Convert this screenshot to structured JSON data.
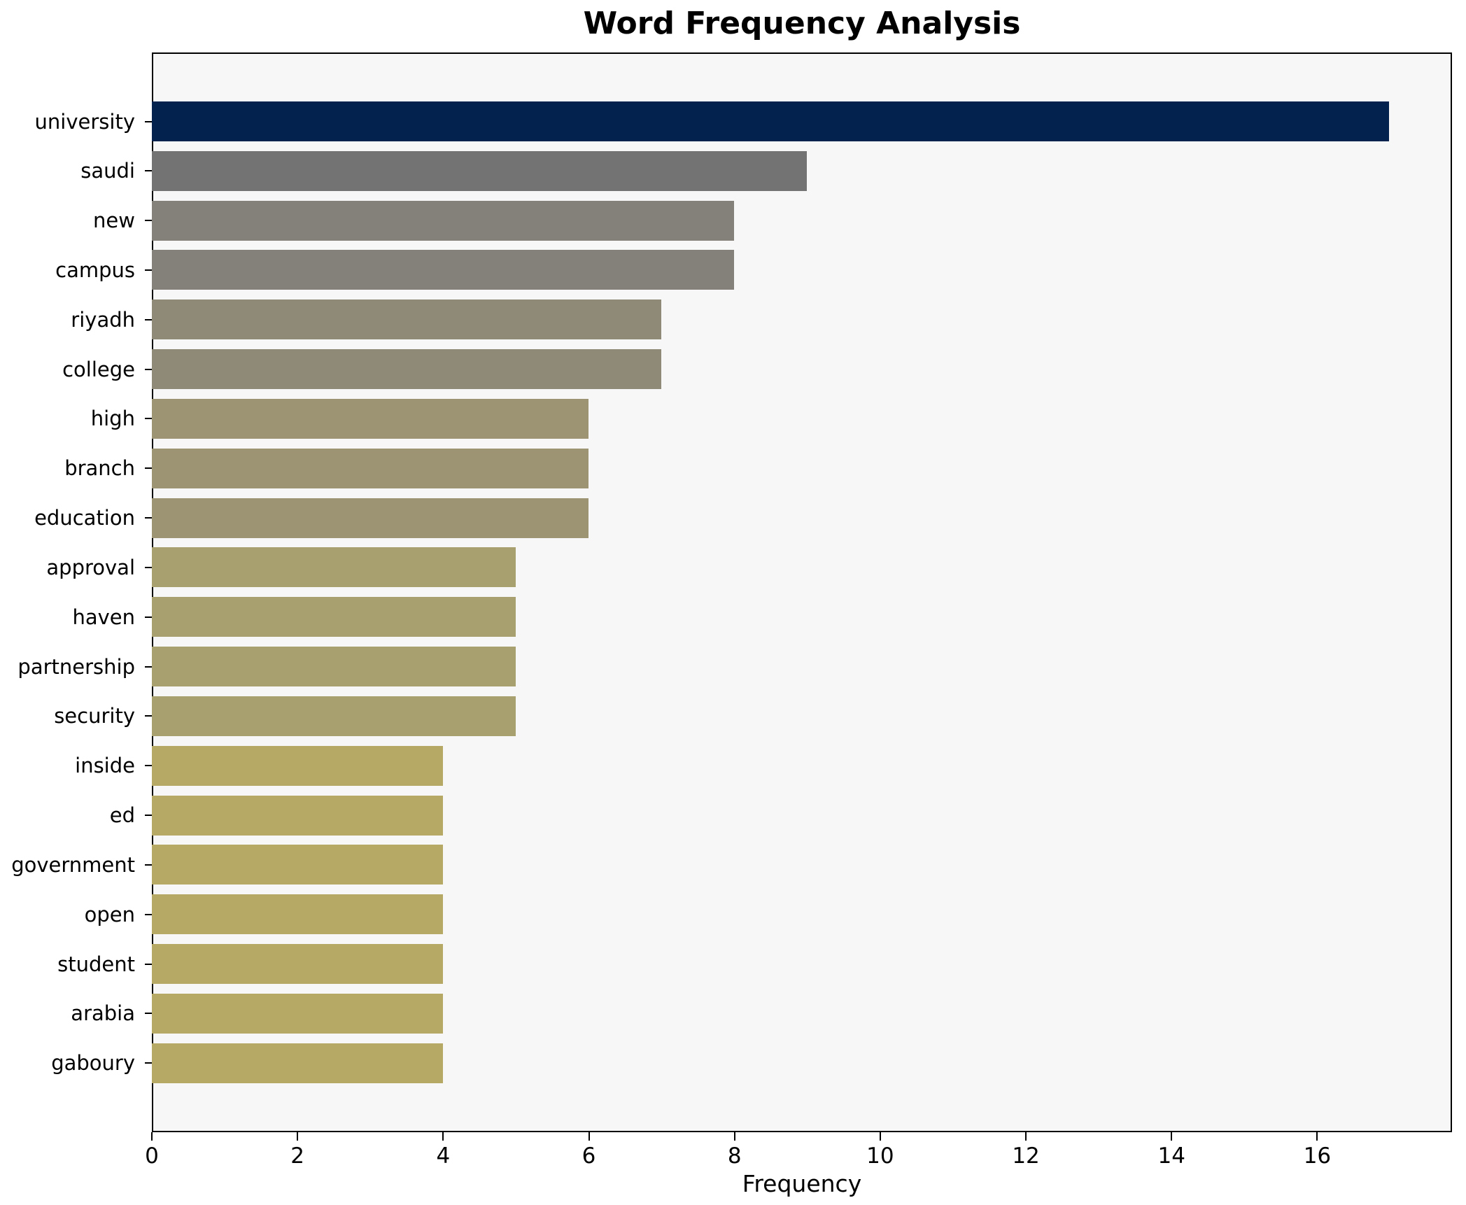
{
  "chart_data": {
    "type": "bar",
    "orientation": "horizontal",
    "title": "Word Frequency Analysis",
    "xlabel": "Frequency",
    "ylabel": "",
    "categories": [
      "university",
      "saudi",
      "new",
      "campus",
      "riyadh",
      "college",
      "high",
      "branch",
      "education",
      "approval",
      "haven",
      "partnership",
      "security",
      "inside",
      "ed",
      "government",
      "open",
      "student",
      "arabia",
      "gaboury"
    ],
    "values": [
      17,
      9,
      8,
      8,
      7,
      7,
      6,
      6,
      6,
      5,
      5,
      5,
      5,
      4,
      4,
      4,
      4,
      4,
      4,
      4
    ],
    "bar_colors": [
      "#03224e",
      "#737374",
      "#84817a",
      "#84817a",
      "#8f8a78",
      "#8f8a78",
      "#9c9472",
      "#9c9472",
      "#9c9472",
      "#a9a06f",
      "#a9a06f",
      "#a9a06f",
      "#a9a06f",
      "#b5a965",
      "#b5a965",
      "#b5a965",
      "#b5a965",
      "#b5a965",
      "#b5a965",
      "#b5a965"
    ],
    "xlim": [
      0,
      17.85
    ],
    "xticks": [
      0,
      2,
      4,
      6,
      8,
      10,
      12,
      14,
      16
    ],
    "grid": false,
    "plot_background": "#f7f7f8",
    "figure_background": "#ffffff",
    "spine_color": "#000000"
  }
}
